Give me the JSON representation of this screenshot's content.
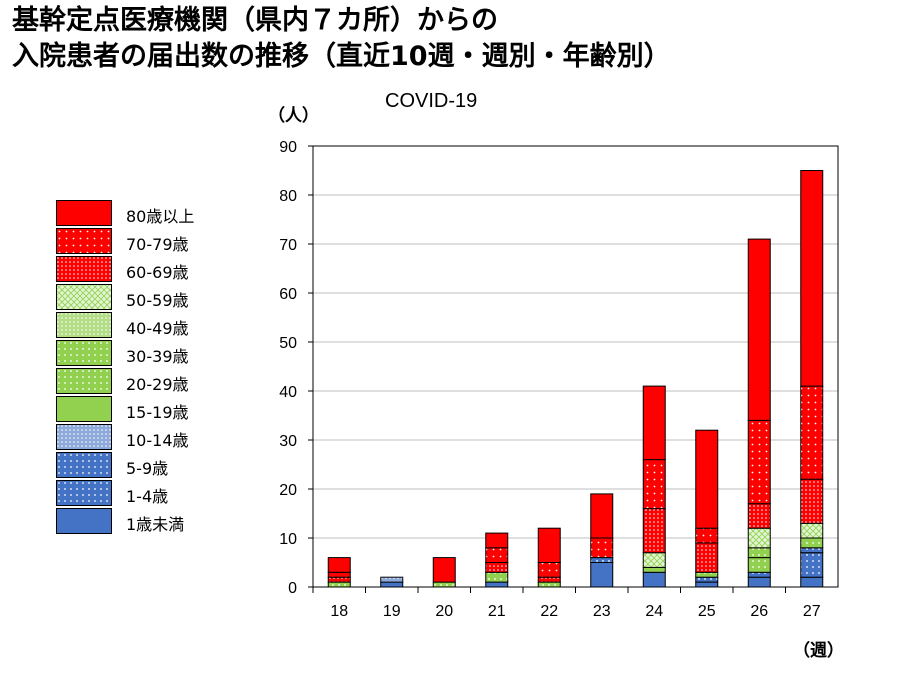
{
  "title": {
    "line1": "基幹定点医療機関（県内７カ所）からの",
    "line2": "入院患者の届出数の推移（直近10週・週別・年齢別）"
  },
  "subtitle": "COVID-19",
  "y_unit": "（人）",
  "x_unit": "（週）",
  "chart_data": {
    "type": "bar",
    "stacked": true,
    "categories": [
      "18",
      "19",
      "20",
      "21",
      "22",
      "23",
      "24",
      "25",
      "26",
      "27"
    ],
    "ylim": [
      0,
      90
    ],
    "yticks": [
      0,
      10,
      20,
      30,
      40,
      50,
      60,
      70,
      80,
      90
    ],
    "grid": true,
    "legend_position": "left",
    "series": [
      {
        "name": "1歳未満",
        "color": "#4472c4",
        "pattern": "solid",
        "values": [
          0,
          1,
          0,
          1,
          0,
          5,
          3,
          1,
          2,
          2
        ]
      },
      {
        "name": "1-4歳",
        "color": "#4472c4",
        "pattern": "dots",
        "values": [
          0,
          0,
          0,
          0,
          0,
          0,
          0,
          0,
          1,
          5
        ]
      },
      {
        "name": "5-9歳",
        "color": "#4472c4",
        "pattern": "dots",
        "values": [
          0,
          0,
          0,
          0,
          0,
          1,
          0,
          1,
          0,
          1
        ]
      },
      {
        "name": "10-14歳",
        "color": "#8eaadb",
        "pattern": "dots-dense",
        "values": [
          0,
          1,
          0,
          0,
          0,
          0,
          0,
          0,
          0,
          0
        ]
      },
      {
        "name": "15-19歳",
        "color": "#92d050",
        "pattern": "solid",
        "values": [
          0,
          0,
          0,
          0,
          0,
          0,
          1,
          0,
          0,
          0
        ]
      },
      {
        "name": "20-29歳",
        "color": "#92d050",
        "pattern": "dots",
        "values": [
          1,
          0,
          1,
          2,
          1,
          0,
          0,
          0,
          3,
          0
        ]
      },
      {
        "name": "30-39歳",
        "color": "#92d050",
        "pattern": "dots",
        "values": [
          0,
          0,
          0,
          0,
          0,
          0,
          0,
          1,
          2,
          2
        ]
      },
      {
        "name": "40-49歳",
        "color": "#b4de86",
        "pattern": "dots-dense",
        "values": [
          0,
          0,
          0,
          0,
          0,
          0,
          0,
          0,
          0,
          0
        ]
      },
      {
        "name": "50-59歳",
        "color": "#c6efb0",
        "pattern": "cross",
        "values": [
          0,
          0,
          0,
          0,
          0,
          0,
          3,
          0,
          4,
          3
        ]
      },
      {
        "name": "60-69歳",
        "color": "#ff0000",
        "pattern": "dots-dense",
        "values": [
          1,
          0,
          0,
          2,
          1,
          0,
          9,
          6,
          5,
          9
        ]
      },
      {
        "name": "70-79歳",
        "color": "#ff0000",
        "pattern": "dots",
        "values": [
          1,
          0,
          0,
          3,
          3,
          4,
          10,
          3,
          17,
          19
        ]
      },
      {
        "name": "80歳以上",
        "color": "#ff0000",
        "pattern": "solid",
        "values": [
          3,
          0,
          5,
          3,
          7,
          9,
          15,
          20,
          37,
          44
        ]
      }
    ]
  }
}
